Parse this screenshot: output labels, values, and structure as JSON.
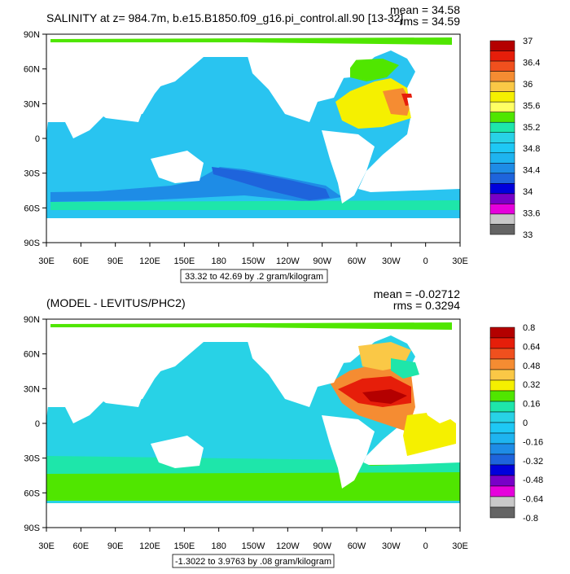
{
  "panels": [
    {
      "title": "SALINITY at z= 984.7m, b.e15.B1850.f09_g16.pi_control.all.90 [13-32]",
      "mean_text": "mean = 34.58",
      "rms_text": "rms = 34.59",
      "range_text": "33.32 to 42.69 by .2 gram/kilogram",
      "colorbar": {
        "labels": [
          "37",
          "36.4",
          "36",
          "35.6",
          "35.2",
          "34.8",
          "34.4",
          "34",
          "33.6",
          "33"
        ],
        "colors": [
          "#b40000",
          "#e61e0a",
          "#f0501e",
          "#f58c32",
          "#fac846",
          "#f5f000",
          "#ffff64",
          "#50e600",
          "#1ee6aa",
          "#28d2e6",
          "#1ec8f5",
          "#1eb4f0",
          "#1e8ce6",
          "#1e64dc",
          "#0000dc",
          "#7800c8",
          "#e600dc",
          "#c8c8c8",
          "#646464"
        ]
      }
    },
    {
      "title": "(MODEL - LEVITUS/PHC2)",
      "mean_text": "mean = -0.02712",
      "rms_text": "rms = 0.3294",
      "range_text": "-1.3022 to 3.9763 by .08 gram/kilogram",
      "colorbar": {
        "labels": [
          "0.8",
          "0.64",
          "0.48",
          "0.32",
          "0.16",
          "0",
          "-0.16",
          "-0.32",
          "-0.48",
          "-0.64",
          "-0.8"
        ],
        "colors": [
          "#b40000",
          "#e61e0a",
          "#f0501e",
          "#f58c32",
          "#fac846",
          "#f5f000",
          "#50e600",
          "#1ee6aa",
          "#28d2e6",
          "#1ec8f5",
          "#1eb4f0",
          "#1e8ce6",
          "#1e64dc",
          "#0000dc",
          "#7800c8",
          "#e600dc",
          "#c8c8c8",
          "#646464"
        ]
      }
    }
  ],
  "axes": {
    "lat_labels": [
      "90N",
      "60N",
      "30N",
      "0",
      "30S",
      "60S",
      "90S"
    ],
    "lon_labels": [
      "30E",
      "60E",
      "90E",
      "120E",
      "150E",
      "180",
      "150W",
      "120W",
      "90W",
      "60W",
      "30W",
      "0",
      "30E"
    ]
  }
}
